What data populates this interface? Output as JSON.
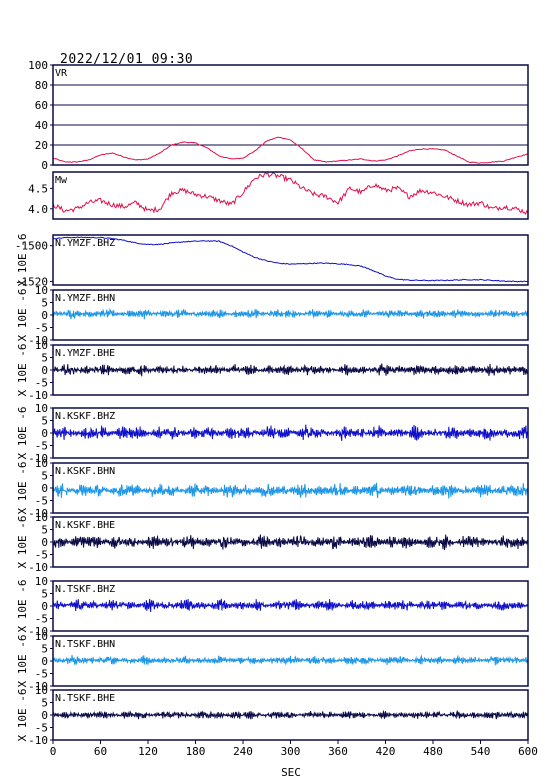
{
  "title": "2022/12/01 09:30",
  "colors": {
    "vr": "#e0104a",
    "mw": "#e0104a",
    "bhz": "#1010c8",
    "bhn": "#1e96e6",
    "bhe": "#0a0a46",
    "frame": "#0a0a46",
    "grid": "#0a0a46"
  },
  "chart_data": [
    {
      "type": "line",
      "label": "VR",
      "ylim": [
        0,
        100
      ],
      "yticks": [
        0,
        20,
        40,
        60,
        80,
        100
      ],
      "grid": "horizontal",
      "x": [
        0,
        15,
        30,
        45,
        60,
        75,
        90,
        105,
        120,
        135,
        150,
        165,
        180,
        195,
        210,
        225,
        240,
        255,
        270,
        285,
        300,
        315,
        330,
        345,
        360,
        375,
        390,
        405,
        420,
        435,
        450,
        465,
        480,
        495,
        510,
        525,
        540,
        555,
        570,
        585,
        600
      ],
      "y": [
        7,
        3,
        3,
        5,
        10,
        12,
        8,
        5,
        6,
        12,
        20,
        23,
        22,
        17,
        9,
        6,
        7,
        14,
        24,
        28,
        25,
        16,
        5,
        3,
        4,
        5,
        6,
        4,
        5,
        9,
        14,
        16,
        16,
        15,
        9,
        3,
        2,
        3,
        4,
        8,
        11
      ]
    },
    {
      "type": "line",
      "label": "Mw",
      "ylim": [
        3.75,
        4.9
      ],
      "yticks": [
        4.0,
        4.5
      ],
      "ytick_labels": [
        "4.0",
        "4.5"
      ],
      "x": [
        0,
        15,
        30,
        45,
        60,
        75,
        90,
        105,
        120,
        135,
        150,
        165,
        180,
        195,
        210,
        225,
        240,
        255,
        270,
        285,
        300,
        315,
        330,
        345,
        360,
        375,
        390,
        405,
        420,
        435,
        450,
        465,
        480,
        495,
        510,
        525,
        540,
        555,
        570,
        585,
        600
      ],
      "y": [
        4.1,
        3.95,
        4.0,
        4.15,
        4.2,
        4.1,
        4.05,
        4.15,
        3.95,
        4.0,
        4.4,
        4.45,
        4.35,
        4.3,
        4.2,
        4.1,
        4.4,
        4.75,
        4.85,
        4.8,
        4.7,
        4.5,
        4.35,
        4.3,
        4.15,
        4.5,
        4.4,
        4.6,
        4.45,
        4.5,
        4.3,
        4.45,
        4.4,
        4.3,
        4.2,
        4.1,
        4.15,
        4.0,
        4.05,
        4.0,
        3.9
      ]
    },
    {
      "type": "line",
      "label": "N.YMZF.BHZ",
      "ylabel": "X 10E -6",
      "ylim": [
        -1522,
        -1494
      ],
      "yticks": [
        -1500,
        -1520
      ],
      "ytick_labels": [
        "-1500",
        "-1520"
      ],
      "x": [
        0,
        15,
        30,
        45,
        60,
        75,
        90,
        105,
        120,
        135,
        150,
        165,
        180,
        195,
        210,
        225,
        240,
        255,
        270,
        285,
        300,
        315,
        330,
        345,
        360,
        375,
        390,
        405,
        420,
        435,
        450,
        465,
        480,
        495,
        510,
        525,
        540,
        555,
        570,
        585,
        600
      ],
      "y": [
        -1496,
        -1495.5,
        -1495.3,
        -1495.4,
        -1495.5,
        -1496,
        -1497,
        -1498.5,
        -1499.3,
        -1499.2,
        -1498.5,
        -1497.8,
        -1497.5,
        -1497.3,
        -1497.5,
        -1500,
        -1503.5,
        -1506.5,
        -1508.5,
        -1509.8,
        -1510.3,
        -1510.1,
        -1509.8,
        -1509.8,
        -1510.1,
        -1510.6,
        -1511.5,
        -1514,
        -1517,
        -1518.8,
        -1519.3,
        -1519.4,
        -1519.5,
        -1519.4,
        -1519.2,
        -1519,
        -1519.1,
        -1519.4,
        -1519.8,
        -1520,
        -1520
      ]
    },
    {
      "type": "line",
      "label": "N.YMZF.BHN",
      "ylabel": "X 10E -6",
      "ylim": [
        -10,
        10
      ],
      "yticks": [
        -10,
        -5,
        0,
        5,
        10
      ],
      "amplitude": 1.2,
      "offset": 0.5,
      "x_range": [
        0,
        600
      ],
      "note": "noise trace"
    },
    {
      "type": "line",
      "label": "N.YMZF.BHE",
      "ylabel": "X 10E -6",
      "ylim": [
        -10,
        10
      ],
      "yticks": [
        -10,
        -5,
        0,
        5,
        10
      ],
      "amplitude": 1.5,
      "offset": 0.0,
      "x_range": [
        0,
        600
      ],
      "note": "noise trace"
    },
    {
      "type": "line",
      "label": "N.KSKF.BHZ",
      "ylabel": "X 10E -6",
      "ylim": [
        -10,
        10
      ],
      "yticks": [
        -10,
        -5,
        0,
        5,
        10
      ],
      "amplitude": 1.8,
      "offset": 0.0,
      "x_range": [
        0,
        600
      ],
      "note": "noise trace"
    },
    {
      "type": "line",
      "label": "N.KSKF.BHN",
      "ylabel": "X 10E -6",
      "ylim": [
        -10,
        10
      ],
      "yticks": [
        -10,
        -5,
        0,
        5,
        10
      ],
      "amplitude": 1.9,
      "offset": -1.0,
      "x_range": [
        0,
        600
      ],
      "note": "noise trace"
    },
    {
      "type": "line",
      "label": "N.KSKF.BHE",
      "ylabel": "X 10E -6",
      "ylim": [
        -10,
        10
      ],
      "yticks": [
        -10,
        -5,
        0,
        5,
        10
      ],
      "amplitude": 1.9,
      "offset": 0.0,
      "x_range": [
        0,
        600
      ],
      "note": "noise trace"
    },
    {
      "type": "line",
      "label": "N.TSKF.BHZ",
      "ylabel": "X 10E -6",
      "ylim": [
        -10,
        10
      ],
      "yticks": [
        -10,
        -5,
        0,
        5,
        10
      ],
      "amplitude": 1.5,
      "offset": 0.3,
      "x_range": [
        0,
        600
      ],
      "note": "noise trace"
    },
    {
      "type": "line",
      "label": "N.TSKF.BHN",
      "ylabel": "X 10E -6",
      "ylim": [
        -10,
        10
      ],
      "yticks": [
        -10,
        -5,
        0,
        5,
        10
      ],
      "amplitude": 1.2,
      "offset": 0.3,
      "x_range": [
        0,
        600
      ],
      "note": "noise trace"
    },
    {
      "type": "line",
      "label": "N.TSKF.BHE",
      "ylabel": "X 10E -6",
      "ylim": [
        -10,
        10
      ],
      "yticks": [
        -10,
        -5,
        0,
        5,
        10
      ],
      "amplitude": 1.1,
      "offset": 0.0,
      "x_range": [
        0,
        600
      ],
      "note": "noise trace"
    }
  ],
  "xaxis": {
    "label": "SEC",
    "ticks": [
      0,
      60,
      120,
      180,
      240,
      300,
      360,
      420,
      480,
      540,
      600
    ],
    "xlim": [
      0,
      600
    ]
  }
}
